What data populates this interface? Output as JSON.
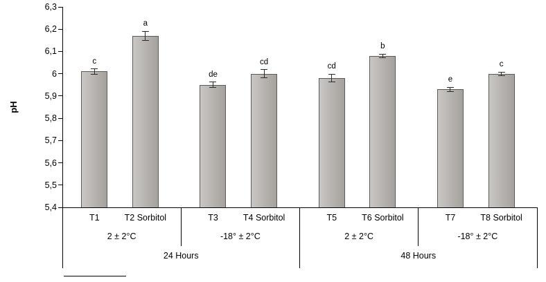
{
  "chart_data": {
    "type": "bar",
    "title": "",
    "ylabel": "pH",
    "xlabel": "",
    "ylim": [
      5.4,
      6.3
    ],
    "grid": "off",
    "legend": "none",
    "ytick_values": [
      5.4,
      5.5,
      5.6,
      5.7,
      5.8,
      5.9,
      6.0,
      6.1,
      6.2,
      6.3
    ],
    "ytick_labels": [
      "5,4",
      "5,5",
      "5,6",
      "5,7",
      "5,8",
      "5,9",
      "6",
      "6,1",
      "6,2",
      "6,3"
    ],
    "categories": [
      "T1",
      "T2 Sorbitol",
      "T3",
      "T4 Sorbitol",
      "T5",
      "T6 Sorbitol",
      "T7",
      "T8 Sorbitol"
    ],
    "values": [
      6.01,
      6.17,
      5.95,
      6.0,
      5.98,
      6.08,
      5.93,
      6.0
    ],
    "errors": [
      0.012,
      0.02,
      0.012,
      0.018,
      0.018,
      0.008,
      0.01,
      0.008
    ],
    "sig_letters": [
      "c",
      "a",
      "de",
      "cd",
      "cd",
      "b",
      "e",
      "c"
    ],
    "temp_groups": [
      "2 ± 2°C",
      "-18° ± 2°C",
      "2 ± 2°C",
      "-18° ± 2°C"
    ],
    "time_groups": [
      "24 Hours",
      "48 Hours"
    ],
    "colors": {
      "bar_fill_light": "#c9c6c3",
      "bar_fill_dark": "#a5a19d",
      "bar_border": "#595959",
      "error_bar": "#2b2b2b",
      "axis": "#000000"
    }
  }
}
